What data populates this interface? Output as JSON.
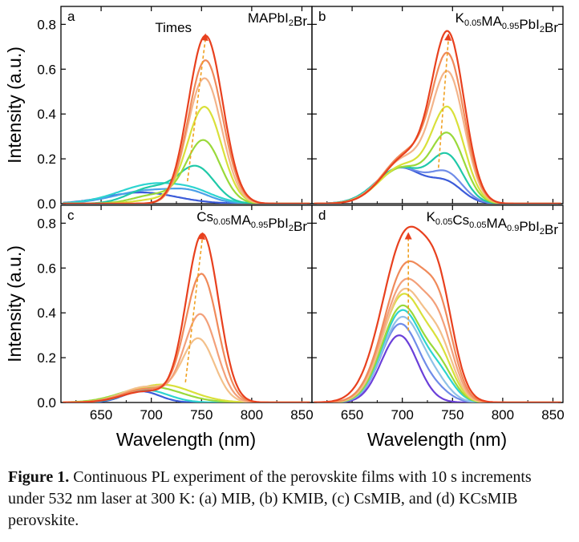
{
  "caption": {
    "label": "Figure 1.",
    "text": " Continuous PL experiment of the perovskite films with 10 s increments under 532 nm laser at 300 K: (a) MIB, (b) KMIB, (c) CsMIB, and (d) KCsMIB perovskite."
  },
  "axes": {
    "ylabel": "Intensity (a.u.)",
    "xlabel": "Wavelength (nm)",
    "x_ticks": [
      650,
      700,
      750,
      800,
      850
    ],
    "y_ticks": [
      "0.0",
      "0.2",
      "0.4",
      "0.6",
      "0.8"
    ],
    "xlim": [
      610,
      860
    ],
    "ylim": [
      0,
      0.88
    ]
  },
  "chart_data": [
    {
      "type": "line",
      "panel_label": "a",
      "composition": [
        [
          "MAPbI",
          false
        ],
        [
          "2",
          true
        ],
        [
          "Br",
          false
        ]
      ],
      "annotation": "Times",
      "peak_arrow": {
        "from": [
          736,
          0.1
        ],
        "to": [
          754,
          0.76
        ]
      },
      "series": [
        {
          "c": 690,
          "w": 35,
          "a": 0.05,
          "sub": [],
          "color": "#3b5bd9"
        },
        {
          "c": 700,
          "w": 35,
          "a": 0.06,
          "sub": [
            [
              740,
              18,
              0.03
            ]
          ],
          "color": "#4aa0e8"
        },
        {
          "c": 705,
          "w": 36,
          "a": 0.09,
          "sub": [
            [
              745,
              18,
              0.02
            ]
          ],
          "color": "#2ed4d0"
        },
        {
          "c": 745,
          "w": 18,
          "a": 0.16,
          "sub": [
            [
              700,
              22,
              0.07
            ]
          ],
          "color": "#20c9a8"
        },
        {
          "c": 752,
          "w": 17,
          "a": 0.28,
          "sub": [
            [
              705,
              22,
              0.04
            ]
          ],
          "color": "#9ad93a"
        },
        {
          "c": 753,
          "w": 17,
          "a": 0.43,
          "sub": [
            [
              708,
              22,
              0.02
            ]
          ],
          "color": "#d9e03a"
        },
        {
          "c": 753,
          "w": 17,
          "a": 0.56,
          "sub": [],
          "color": "#f3b48a"
        },
        {
          "c": 754,
          "w": 17,
          "a": 0.64,
          "sub": [],
          "color": "#f08a5a"
        },
        {
          "c": 754,
          "w": 17,
          "a": 0.75,
          "sub": [],
          "color": "#e8401e"
        }
      ]
    },
    {
      "type": "line",
      "panel_label": "b",
      "composition": [
        [
          "K",
          false
        ],
        [
          "0.05",
          true
        ],
        [
          "MA",
          false
        ],
        [
          "0.95",
          true
        ],
        [
          "PbI",
          false
        ],
        [
          "2",
          true
        ],
        [
          "Br",
          false
        ]
      ],
      "peak_arrow": {
        "from": [
          736,
          0.16
        ],
        "to": [
          746,
          0.76
        ]
      },
      "series": [
        {
          "c": 745,
          "w": 16,
          "a": 0.08,
          "sub": [
            [
              698,
              24,
              0.16
            ]
          ],
          "color": "#3b5bd9"
        },
        {
          "c": 745,
          "w": 16,
          "a": 0.12,
          "sub": [
            [
              698,
              24,
              0.16
            ]
          ],
          "color": "#6f8ce8"
        },
        {
          "c": 745,
          "w": 16,
          "a": 0.2,
          "sub": [
            [
              698,
              24,
              0.16
            ]
          ],
          "color": "#20c9a8"
        },
        {
          "c": 746,
          "w": 16,
          "a": 0.29,
          "sub": [
            [
              700,
              24,
              0.16
            ]
          ],
          "color": "#9ad93a"
        },
        {
          "c": 746,
          "w": 16,
          "a": 0.4,
          "sub": [
            [
              702,
              24,
              0.17
            ]
          ],
          "color": "#d9e03a"
        },
        {
          "c": 746,
          "w": 16,
          "a": 0.55,
          "sub": [
            [
              703,
              24,
              0.2
            ]
          ],
          "color": "#f3b48a"
        },
        {
          "c": 746,
          "w": 16,
          "a": 0.62,
          "sub": [
            [
              705,
              24,
              0.22
            ]
          ],
          "color": "#f08a5a"
        },
        {
          "c": 746,
          "w": 16,
          "a": 0.72,
          "sub": [
            [
              705,
              24,
              0.21
            ]
          ],
          "color": "#e8401e"
        }
      ]
    },
    {
      "type": "line",
      "panel_label": "c",
      "composition": [
        [
          "Cs",
          false
        ],
        [
          "0.05",
          true
        ],
        [
          "MA",
          false
        ],
        [
          "0.95",
          true
        ],
        [
          "PbI",
          false
        ],
        [
          "2",
          true
        ],
        [
          "Br",
          false
        ]
      ],
      "peak_arrow": {
        "from": [
          734,
          0.09
        ],
        "to": [
          751,
          0.76
        ]
      },
      "series": [
        {
          "c": 690,
          "w": 18,
          "a": 0.05,
          "sub": [],
          "color": "#3b5bd9"
        },
        {
          "c": 695,
          "w": 22,
          "a": 0.055,
          "sub": [],
          "color": "#2ed4d0"
        },
        {
          "c": 700,
          "w": 30,
          "a": 0.07,
          "sub": [],
          "color": "#9ad93a"
        },
        {
          "c": 710,
          "w": 30,
          "a": 0.08,
          "sub": [],
          "color": "#d9e03a"
        },
        {
          "c": 747,
          "w": 16,
          "a": 0.28,
          "sub": [
            [
              695,
              24,
              0.07
            ]
          ],
          "color": "#f3c08a"
        },
        {
          "c": 749,
          "w": 16,
          "a": 0.39,
          "sub": [
            [
              695,
              24,
              0.06
            ]
          ],
          "color": "#f3a07a"
        },
        {
          "c": 750,
          "w": 16,
          "a": 0.57,
          "sub": [
            [
              695,
              24,
              0.06
            ]
          ],
          "color": "#f08a5a"
        },
        {
          "c": 751,
          "w": 16,
          "a": 0.75,
          "sub": [
            [
              695,
              24,
              0.05
            ]
          ],
          "color": "#e8401e"
        }
      ]
    },
    {
      "type": "line",
      "panel_label": "d",
      "composition": [
        [
          "K",
          false
        ],
        [
          "0.05",
          true
        ],
        [
          "Cs",
          false
        ],
        [
          "0.05",
          true
        ],
        [
          "MA",
          false
        ],
        [
          "0.9",
          true
        ],
        [
          "PbI",
          false
        ],
        [
          "2",
          true
        ],
        [
          "Br",
          false
        ]
      ],
      "peak_arrow": {
        "from": [
          706,
          0.32
        ],
        "to": [
          706,
          0.76
        ]
      },
      "series": [
        {
          "c": 697,
          "w": 18,
          "a": 0.3,
          "sub": [],
          "color": "#6a3fd9"
        },
        {
          "c": 698,
          "w": 19,
          "a": 0.35,
          "sub": [
            [
              735,
              14,
              0.04
            ]
          ],
          "color": "#6f8ce8"
        },
        {
          "c": 700,
          "w": 20,
          "a": 0.38,
          "sub": [
            [
              735,
              14,
              0.06
            ]
          ],
          "color": "#8fc1e8"
        },
        {
          "c": 700,
          "w": 20,
          "a": 0.41,
          "sub": [
            [
              738,
              14,
              0.1
            ]
          ],
          "color": "#2ed4d0"
        },
        {
          "c": 700,
          "w": 20,
          "a": 0.43,
          "sub": [
            [
              738,
              14,
              0.13
            ]
          ],
          "color": "#9ad93a"
        },
        {
          "c": 701,
          "w": 21,
          "a": 0.48,
          "sub": [
            [
              738,
              14,
              0.16
            ]
          ],
          "color": "#d9e03a"
        },
        {
          "c": 702,
          "w": 21,
          "a": 0.5,
          "sub": [
            [
              738,
              14,
              0.2
            ]
          ],
          "color": "#f3c08a"
        },
        {
          "c": 703,
          "w": 22,
          "a": 0.54,
          "sub": [
            [
              738,
              14,
              0.24
            ]
          ],
          "color": "#f3a07a"
        },
        {
          "c": 704,
          "w": 22,
          "a": 0.61,
          "sub": [
            [
              738,
              14,
              0.3
            ]
          ],
          "color": "#f08a5a"
        },
        {
          "c": 705,
          "w": 24,
          "a": 0.76,
          "sub": [
            [
              738,
              14,
              0.3
            ]
          ],
          "color": "#e8401e"
        }
      ]
    }
  ]
}
